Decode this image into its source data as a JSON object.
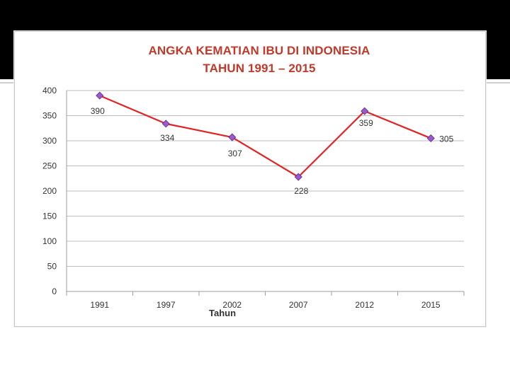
{
  "slide": {
    "band_color": "#000000"
  },
  "chart_data": {
    "type": "line",
    "title_lines": [
      "ANGKA KEMATIAN IBU DI INDONESIA",
      "TAHUN 1991 – 2015"
    ],
    "categories": [
      "1991",
      "1997",
      "2002",
      "2007",
      "2012",
      "2015"
    ],
    "series": [
      {
        "values": [
          390,
          334,
          307,
          228,
          359,
          305
        ],
        "color": "#e02424",
        "marker_color": "#9b59d0"
      }
    ],
    "xlabel": "Tahun",
    "ylabel": "",
    "ylim": [
      0,
      400
    ],
    "yticks": [
      0,
      50,
      100,
      150,
      200,
      250,
      300,
      350,
      400
    ],
    "grid": true,
    "data_labels": [
      "390",
      "334",
      "307",
      "228",
      "359",
      "305"
    ],
    "title_color": "#c0392b"
  }
}
